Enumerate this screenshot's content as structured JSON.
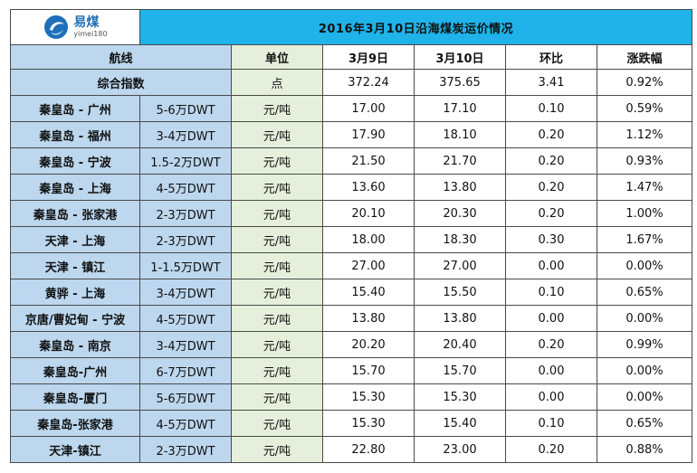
{
  "title": "2016年3月10日沿海煤炭运价情况",
  "logo": {
    "brand_cn": "易煤",
    "brand_en": "yimei180",
    "colors": {
      "primary": "#1e6fb8",
      "accent": "#1fb3ea"
    }
  },
  "colors": {
    "title_bg": "#1fb3ea",
    "route_bg": "#bcd7ee",
    "unit_bg": "#e6efdb"
  },
  "headers": {
    "route": "航线",
    "unit": "单位",
    "prev_date": "3月9日",
    "curr_date": "3月10日",
    "change": "环比",
    "pct": "涨跌幅"
  },
  "index_row": {
    "label": "综合指数",
    "unit": "点",
    "prev": "372.24",
    "curr": "375.65",
    "change": "3.41",
    "pct": "0.92%"
  },
  "rows": [
    {
      "route": "秦皇岛 - 广州",
      "size": "5-6万DWT",
      "unit": "元/吨",
      "prev": "17.00",
      "curr": "17.10",
      "change": "0.10",
      "pct": "0.59%"
    },
    {
      "route": "秦皇岛 - 福州",
      "size": "3-4万DWT",
      "unit": "元/吨",
      "prev": "17.90",
      "curr": "18.10",
      "change": "0.20",
      "pct": "1.12%"
    },
    {
      "route": "秦皇岛 - 宁波",
      "size": "1.5-2万DWT",
      "unit": "元/吨",
      "prev": "21.50",
      "curr": "21.70",
      "change": "0.20",
      "pct": "0.93%"
    },
    {
      "route": "秦皇岛 - 上海",
      "size": "4-5万DWT",
      "unit": "元/吨",
      "prev": "13.60",
      "curr": "13.80",
      "change": "0.20",
      "pct": "1.47%"
    },
    {
      "route": "秦皇岛 - 张家港",
      "size": "2-3万DWT",
      "unit": "元/吨",
      "prev": "20.10",
      "curr": "20.30",
      "change": "0.20",
      "pct": "1.00%"
    },
    {
      "route": "天津 - 上海",
      "size": "2-3万DWT",
      "unit": "元/吨",
      "prev": "18.00",
      "curr": "18.30",
      "change": "0.30",
      "pct": "1.67%"
    },
    {
      "route": "天津 - 镇江",
      "size": "1-1.5万DWT",
      "unit": "元/吨",
      "prev": "27.00",
      "curr": "27.00",
      "change": "0.00",
      "pct": "0.00%"
    },
    {
      "route": "黄骅 - 上海",
      "size": "3-4万DWT",
      "unit": "元/吨",
      "prev": "15.40",
      "curr": "15.50",
      "change": "0.10",
      "pct": "0.65%"
    },
    {
      "route": "京唐/曹妃甸 - 宁波",
      "size": "4-5万DWT",
      "unit": "元/吨",
      "prev": "13.80",
      "curr": "13.80",
      "change": "0.00",
      "pct": "0.00%"
    },
    {
      "route": "秦皇岛 - 南京",
      "size": "3-4万DWT",
      "unit": "元/吨",
      "prev": "20.20",
      "curr": "20.40",
      "change": "0.20",
      "pct": "0.99%"
    },
    {
      "route": "秦皇岛-广州",
      "size": "6-7万DWT",
      "unit": "元/吨",
      "prev": "15.70",
      "curr": "15.70",
      "change": "0.00",
      "pct": "0.00%"
    },
    {
      "route": "秦皇岛-厦门",
      "size": "5-6万DWT",
      "unit": "元/吨",
      "prev": "15.30",
      "curr": "15.30",
      "change": "0.00",
      "pct": "0.00%"
    },
    {
      "route": "秦皇岛-张家港",
      "size": "4-5万DWT",
      "unit": "元/吨",
      "prev": "15.30",
      "curr": "15.40",
      "change": "0.10",
      "pct": "0.65%"
    },
    {
      "route": "天津-镇江",
      "size": "2-3万DWT",
      "unit": "元/吨",
      "prev": "22.80",
      "curr": "23.00",
      "change": "0.20",
      "pct": "0.88%"
    }
  ]
}
